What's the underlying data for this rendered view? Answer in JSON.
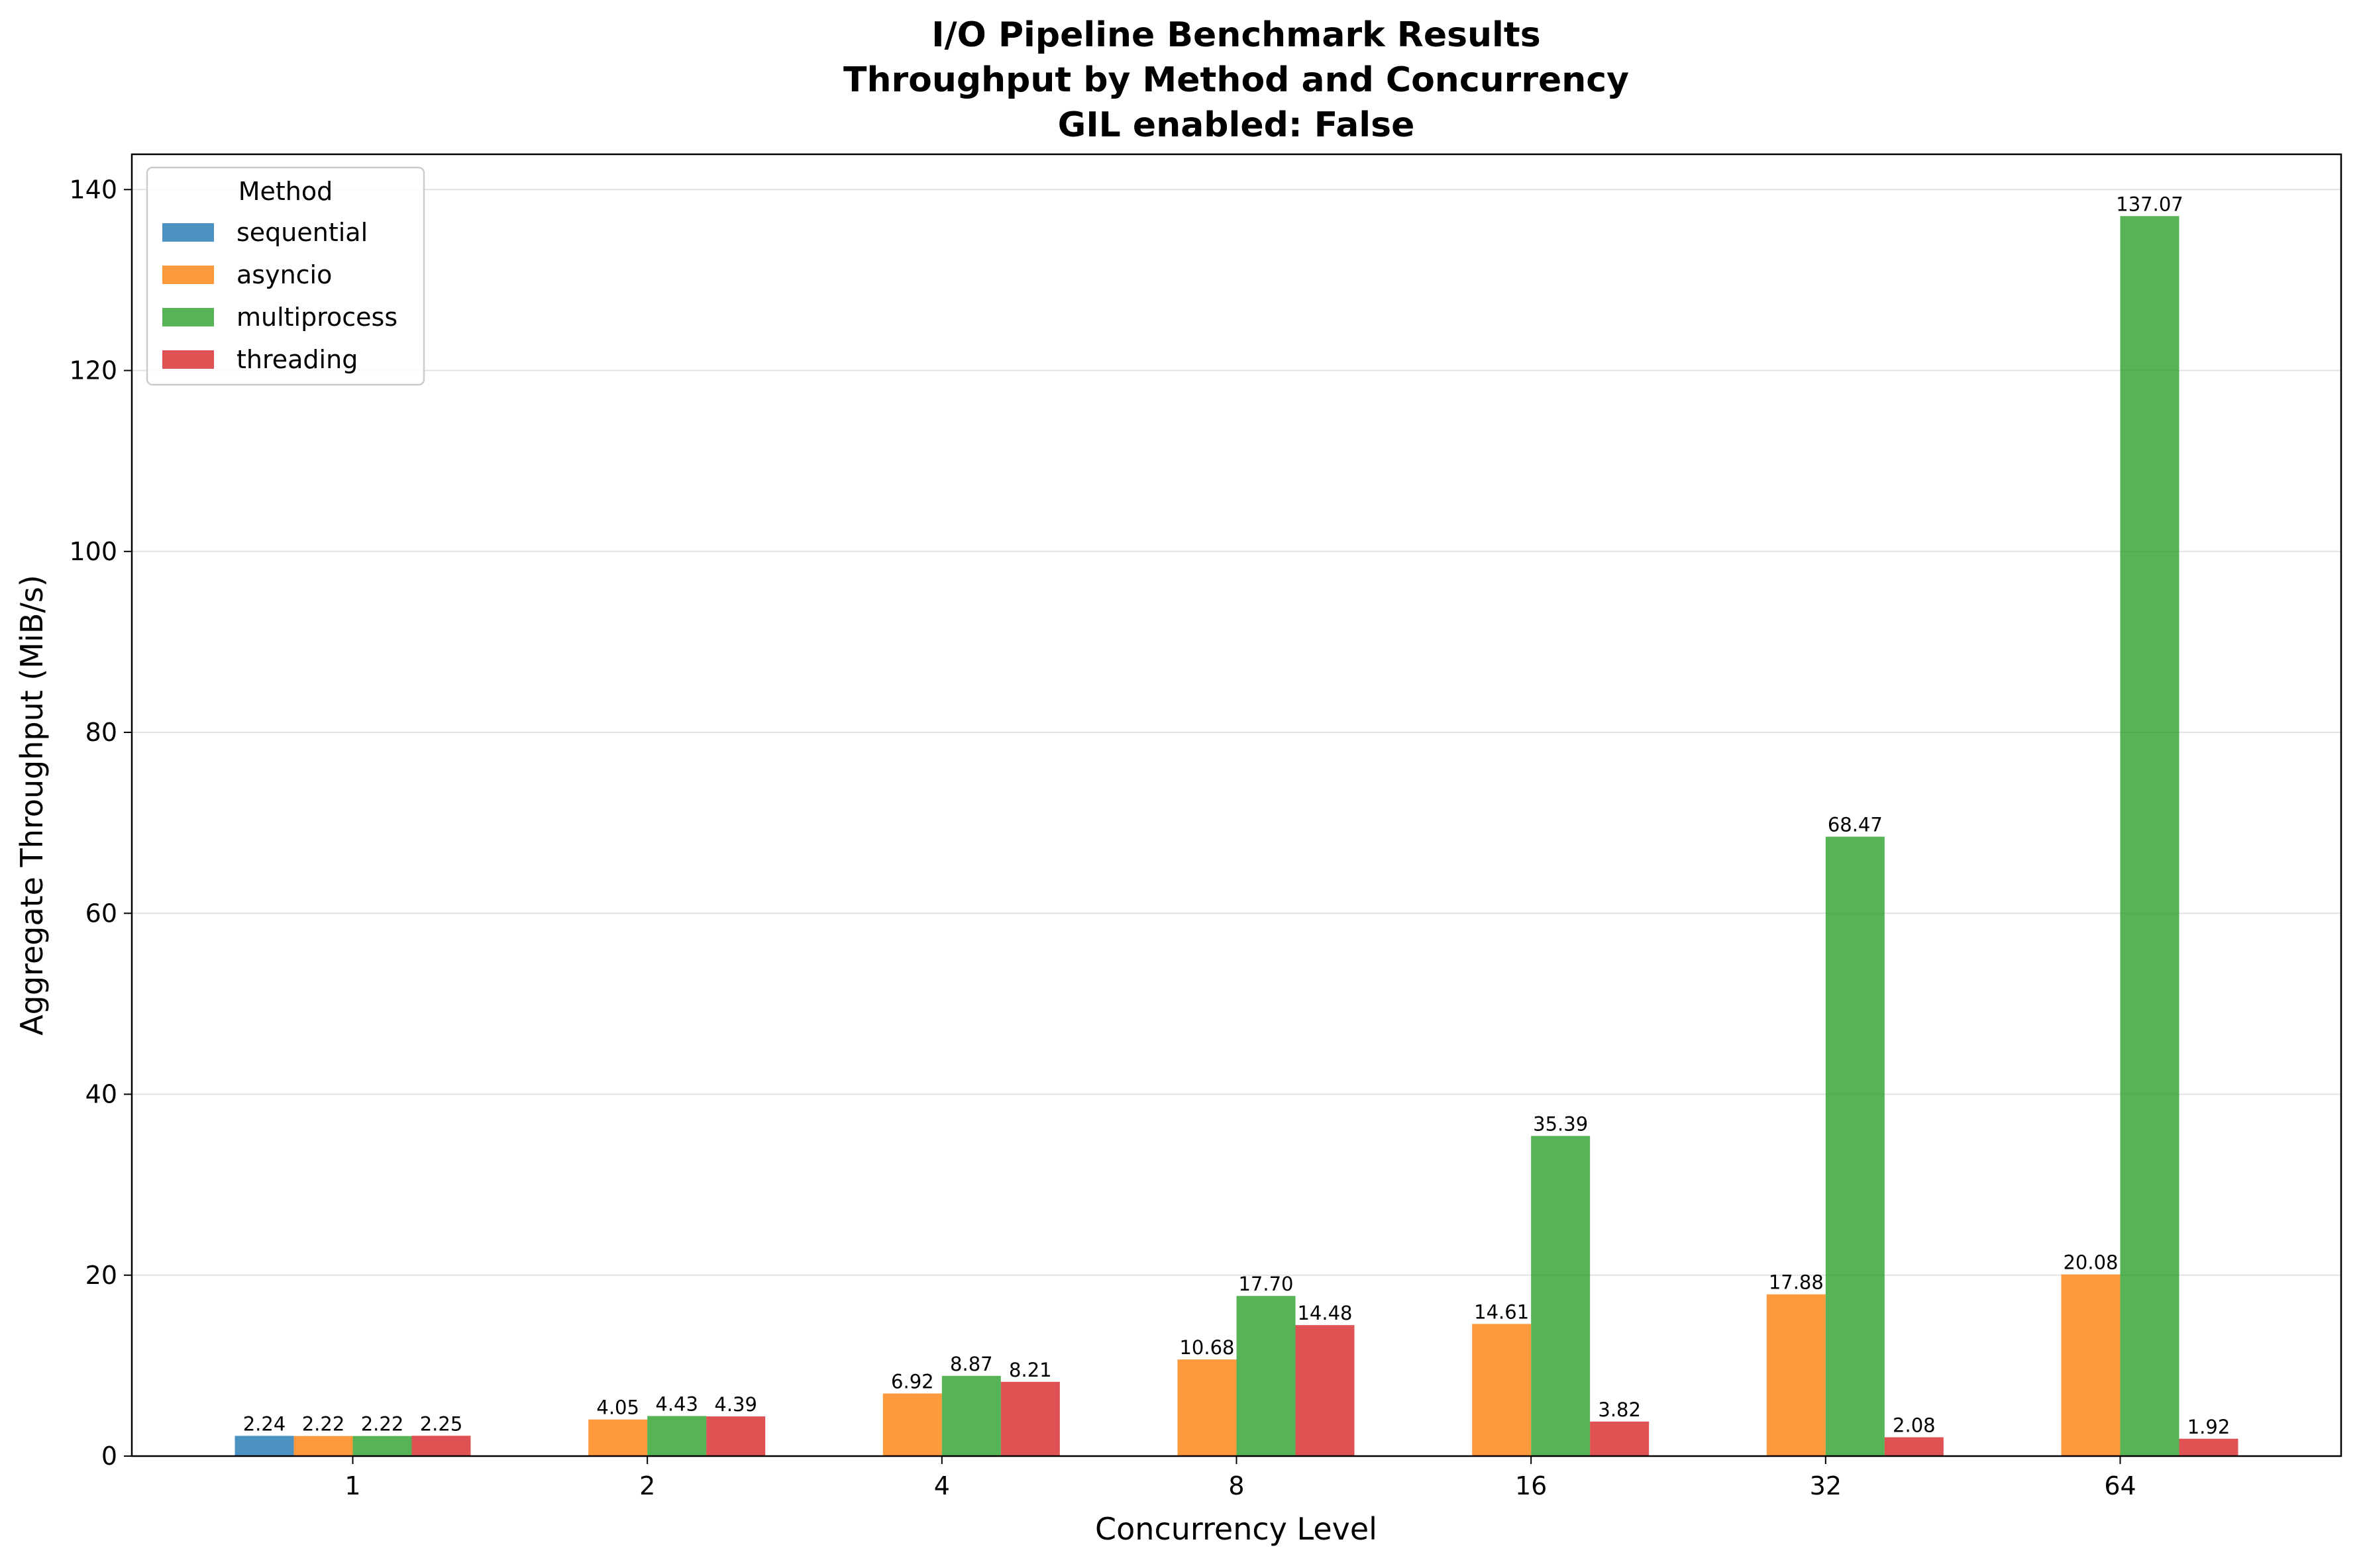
{
  "chart_data": {
    "type": "bar",
    "title": [
      "I/O Pipeline Benchmark Results",
      "Throughput by Method and Concurrency",
      "GIL enabled: False"
    ],
    "xlabel": "Concurrency Level",
    "ylabel": "Aggregate Throughput (MiB/s)",
    "categories": [
      "1",
      "2",
      "4",
      "8",
      "16",
      "32",
      "64"
    ],
    "ylim": [
      0,
      143.9
    ],
    "yticks": [
      0,
      20,
      40,
      60,
      80,
      100,
      120,
      140
    ],
    "grid": "y",
    "legend": {
      "title": "Method",
      "placement": "top-left"
    },
    "series": [
      {
        "name": "sequential",
        "color": "#1f77b4",
        "values": [
          2.24,
          null,
          null,
          null,
          null,
          null,
          null
        ],
        "labels": [
          "2.24",
          null,
          null,
          null,
          null,
          null,
          null
        ]
      },
      {
        "name": "asyncio",
        "color": "#ff7f0e",
        "values": [
          2.22,
          4.05,
          6.92,
          10.68,
          14.61,
          17.88,
          20.08
        ],
        "labels": [
          "2.22",
          "4.05",
          "6.92",
          "10.68",
          "14.61",
          "17.88",
          "20.08"
        ]
      },
      {
        "name": "multiprocess",
        "color": "#2ca02c",
        "values": [
          2.22,
          4.43,
          8.87,
          17.7,
          35.39,
          68.47,
          137.07
        ],
        "labels": [
          "2.22",
          "4.43",
          "8.87",
          "17.70",
          "35.39",
          "68.47",
          "137.07"
        ]
      },
      {
        "name": "threading",
        "color": "#d62728",
        "values": [
          2.25,
          4.39,
          8.21,
          14.48,
          3.82,
          2.08,
          1.92
        ],
        "labels": [
          "2.25",
          "4.39",
          "8.21",
          "14.48",
          "3.82",
          "2.08",
          "1.92"
        ]
      }
    ]
  }
}
